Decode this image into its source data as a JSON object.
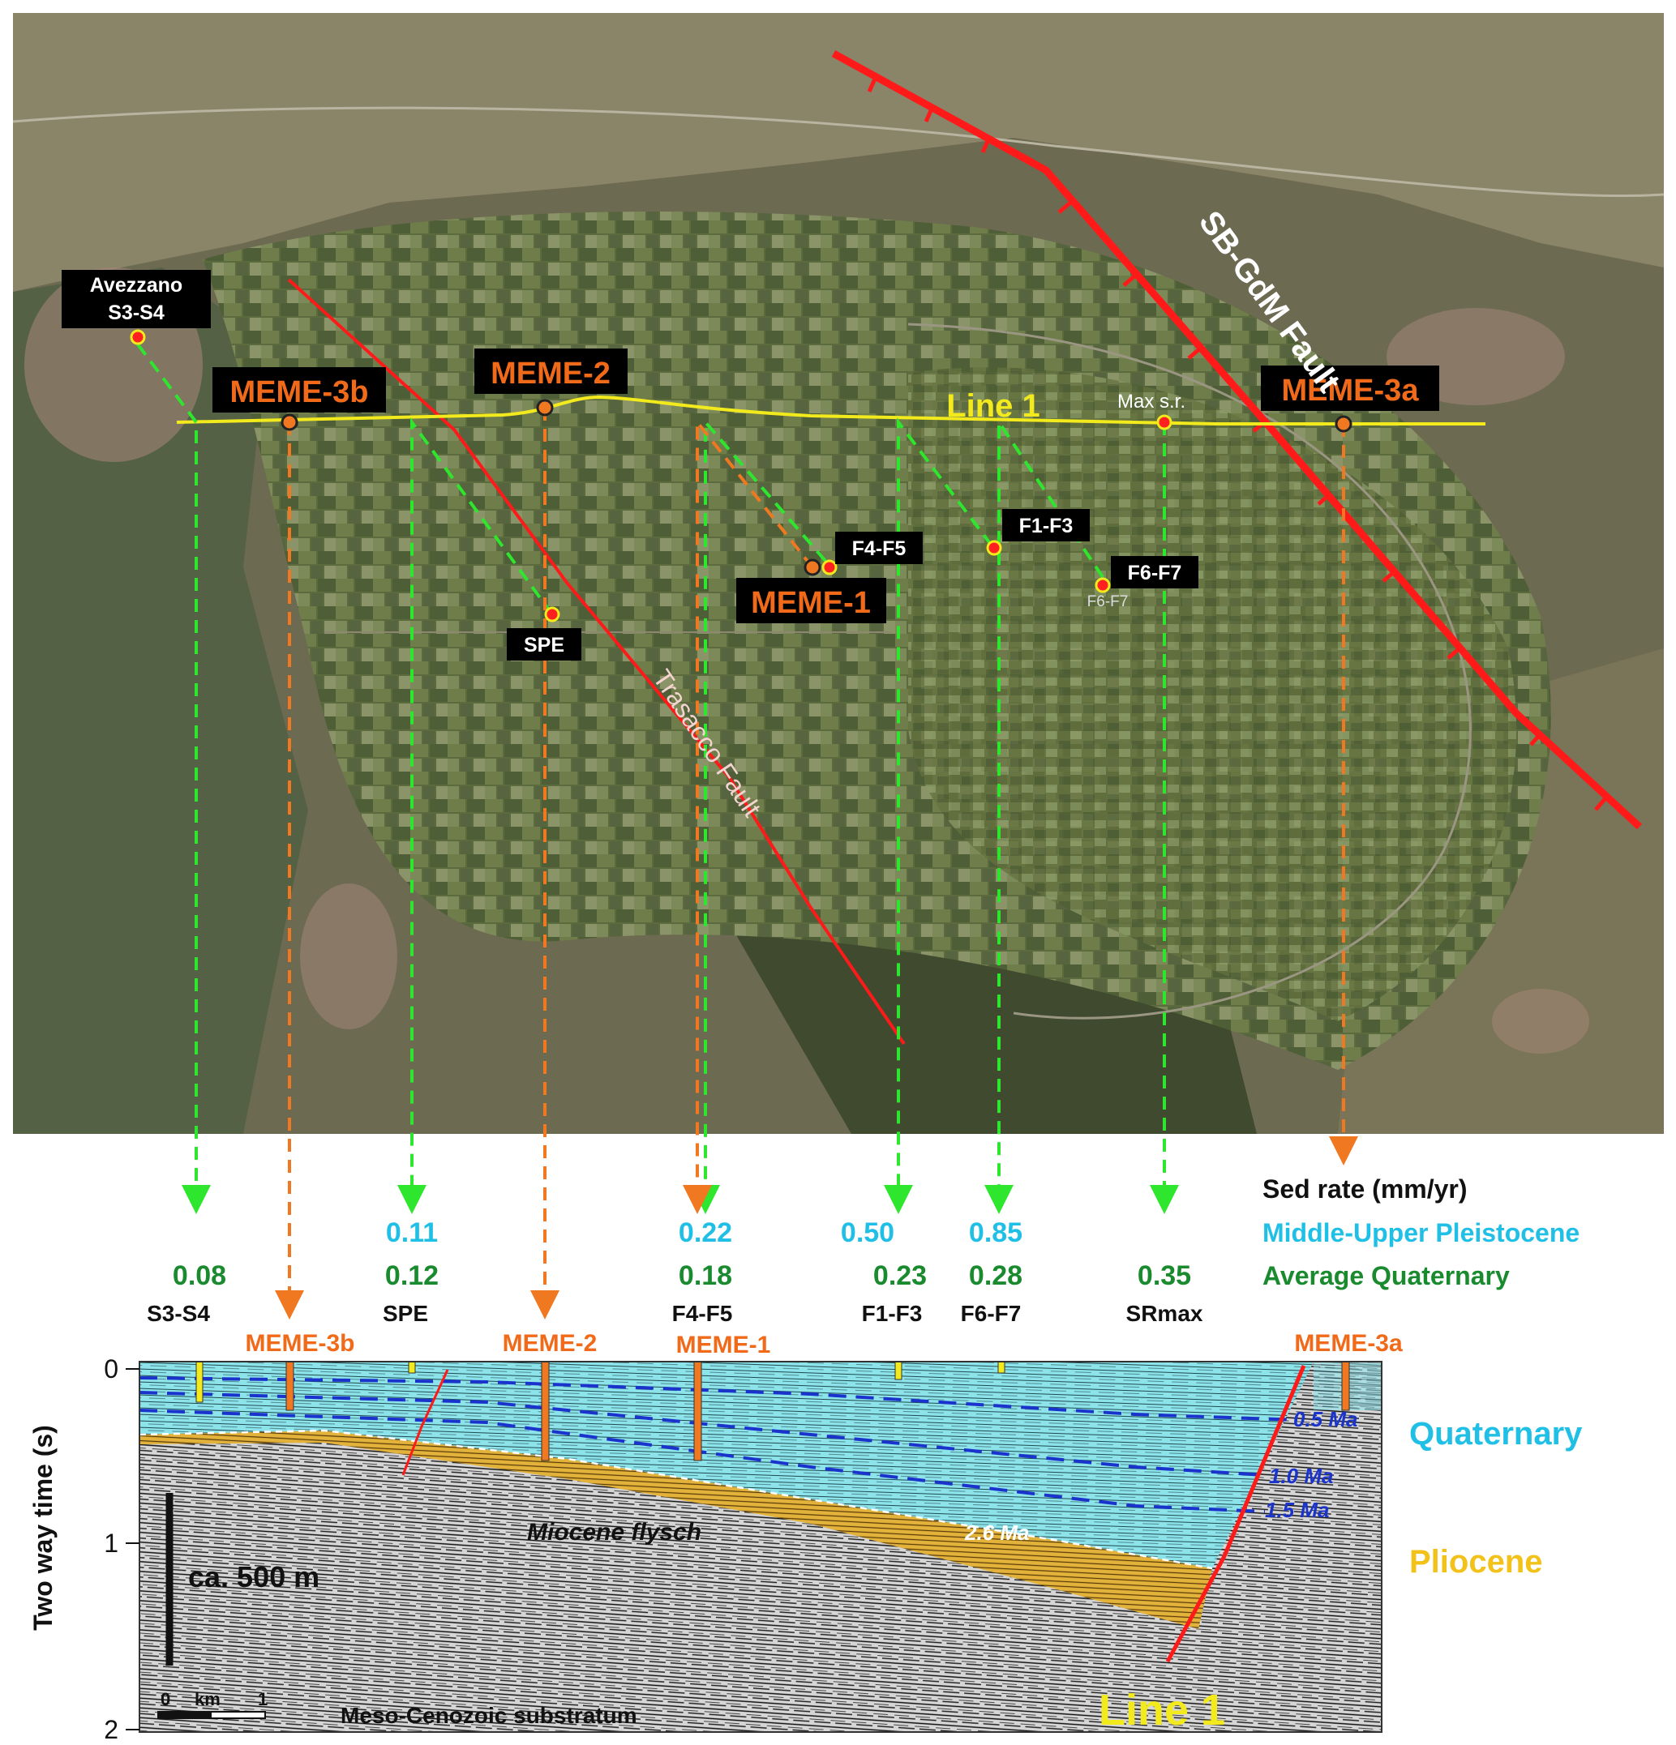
{
  "map": {
    "line_name": "Line 1",
    "wells": {
      "avezzano": {
        "name": "Avezzano",
        "id": "S3-S4"
      },
      "meme3b": "MEME-3b",
      "meme2": "MEME-2",
      "meme3a": "MEME-3a",
      "meme1": "MEME-1",
      "f4f5": "F4-F5",
      "f1f3": "F1-F3",
      "f6f7": "F6-F7",
      "f6f7_small": "F6-F7",
      "spe": "SPE",
      "max_sr": "Max s.r."
    },
    "faults": {
      "sbgdm": "SB-GdM Fault",
      "trasacco": "Trasacco Fault"
    }
  },
  "rates": {
    "legend": {
      "title": "Sed rate (mm/yr)",
      "middle_upper": "Middle-Upper Pleistocene",
      "average": "Average Quaternary"
    },
    "columns": [
      {
        "site": "S3-S4",
        "mup": "",
        "avg": "0.08"
      },
      {
        "site": "SPE",
        "mup": "0.11",
        "avg": "0.12"
      },
      {
        "site": "F4-F5",
        "mup": "0.22",
        "avg": "0.18"
      },
      {
        "site": "F1-F3",
        "mup": "0.50",
        "avg": "0.23"
      },
      {
        "site": "F6-F7",
        "mup": "0.85",
        "avg": "0.28"
      },
      {
        "site": "SRmax",
        "mup": "",
        "avg": "0.35"
      }
    ],
    "section_wells": {
      "meme3b": "MEME-3b",
      "meme2": "MEME-2",
      "meme1": "MEME-1",
      "meme3a": "MEME-3a"
    }
  },
  "section": {
    "y_axis_label": "Two way time (s)",
    "y_ticks": [
      "0",
      "1",
      "2"
    ],
    "ages": {
      "a05": "0.5 Ma",
      "a10": "1.0 Ma",
      "a15": "1.5 Ma",
      "a26": "2.6 Ma"
    },
    "units": {
      "flysch": "Miocene flysch",
      "substratum": "Meso-Cenozoic substratum"
    },
    "scale": {
      "vertical": "ca. 500 m",
      "h0": "0",
      "hkm": "km",
      "h1": "1"
    },
    "line_name": "Line 1",
    "legend": {
      "quaternary": "Quaternary",
      "pliocene": "Pliocene"
    }
  },
  "colors": {
    "fault": "#ff1a1a",
    "line": "#f2ea1c",
    "green_proj": "#2ee62e",
    "orange_proj": "#f07820",
    "label_orange": "#f06a1a",
    "cyan": "#1fbfe6",
    "avg_green": "#1a8a2e",
    "quaternary_fill": "#8de3ea",
    "pliocene_fill": "#e3b23a",
    "age_blue": "#1a33cc"
  }
}
